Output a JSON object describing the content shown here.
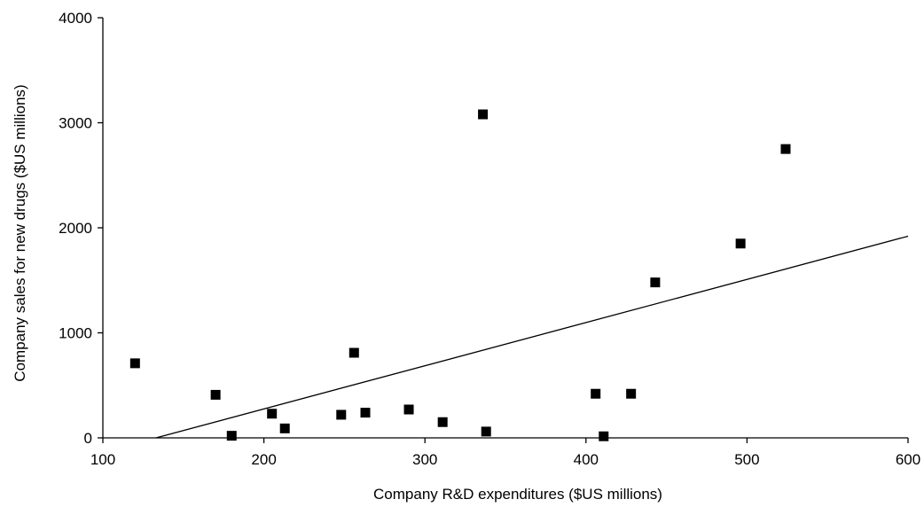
{
  "chart_data": {
    "type": "scatter",
    "title": "",
    "xlabel": "Company R&D expenditures ($US millions)",
    "ylabel": "Company sales for new drugs ($US millions)",
    "xlim": [
      100,
      600
    ],
    "ylim": [
      0,
      4000
    ],
    "x_ticks": [
      100,
      200,
      300,
      400,
      500,
      600
    ],
    "y_ticks": [
      0,
      1000,
      2000,
      3000,
      4000
    ],
    "x_tick_labels": [
      "100",
      "200",
      "300",
      "400",
      "500",
      "600"
    ],
    "y_tick_labels": [
      "0",
      "1000",
      "2000",
      "3000",
      "4000"
    ],
    "grid": false,
    "marker": "square",
    "marker_color": "#000000",
    "points": [
      {
        "x": 120,
        "y": 710
      },
      {
        "x": 170,
        "y": 410
      },
      {
        "x": 180,
        "y": 20
      },
      {
        "x": 205,
        "y": 230
      },
      {
        "x": 213,
        "y": 90
      },
      {
        "x": 248,
        "y": 220
      },
      {
        "x": 256,
        "y": 810
      },
      {
        "x": 263,
        "y": 240
      },
      {
        "x": 290,
        "y": 270
      },
      {
        "x": 311,
        "y": 150
      },
      {
        "x": 336,
        "y": 3080
      },
      {
        "x": 338,
        "y": 60
      },
      {
        "x": 406,
        "y": 420
      },
      {
        "x": 411,
        "y": 15
      },
      {
        "x": 428,
        "y": 420
      },
      {
        "x": 443,
        "y": 1480
      },
      {
        "x": 496,
        "y": 1850
      },
      {
        "x": 524,
        "y": 2750
      }
    ],
    "trendline": {
      "x": [
        133,
        600
      ],
      "y": [
        0,
        1920
      ]
    }
  }
}
